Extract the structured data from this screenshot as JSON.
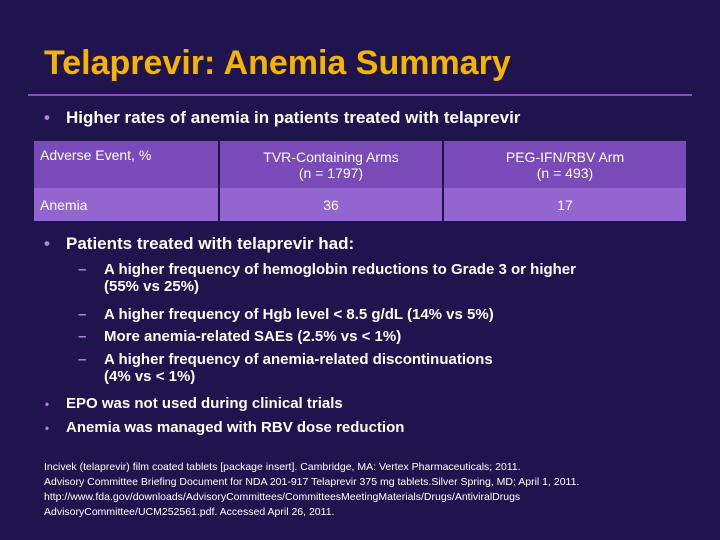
{
  "title": "Telaprevir: Anemia Summary",
  "bullet1": "Higher rates of anemia in patients treated with telaprevir",
  "table": {
    "headers": [
      "Adverse Event, %",
      "TVR-Containing Arms\n(n = 1797)",
      "PEG-IFN/RBV Arm\n(n = 493)"
    ],
    "header_lines": {
      "col2": [
        "TVR-Containing Arms",
        "(n = 1797)"
      ],
      "col3": [
        "PEG-IFN/RBV Arm",
        "(n = 493)"
      ]
    },
    "rows": [
      {
        "event": "Anemia",
        "tvr": "36",
        "peg": "17"
      }
    ]
  },
  "bullet2": "Patients treated with telaprevir had:",
  "subbullets": [
    {
      "lines": [
        "A higher frequency of hemoglobin reductions to Grade 3 or higher",
        "(55% vs 25%)"
      ]
    },
    {
      "lines": [
        "A higher frequency of Hgb level < 8.5 g/dL (14% vs 5%)"
      ]
    },
    {
      "lines": [
        "More anemia-related SAEs (2.5% vs < 1%)"
      ]
    },
    {
      "lines": [
        "A higher frequency of anemia-related discontinuations",
        "(4% vs < 1%)"
      ]
    }
  ],
  "bullet3": "EPO was not used during clinical trials",
  "bullet4": "Anemia was managed with RBV dose reduction",
  "references": [
    "Incivek (telaprevir) film coated tablets [package insert]. Cambridge, MA: Vertex Pharmaceuticals; 2011.",
    "Advisory Committee Briefing Document for NDA 201-917 Telaprevir 375 mg tablets.Silver Spring, MD; April 1, 2011.",
    "http://www.fda.gov/downloads/AdvisoryCommittees/CommitteesMeetingMaterials/Drugs/AntiviralDrugs",
    "AdvisoryCommittee/UCM252561.pdf. Accessed April 26, 2011."
  ],
  "colors": {
    "background": "#20144f",
    "title": "#f5b400",
    "bullet": "#b27fe6",
    "table_header": "#7a4bb8",
    "table_row": "#9366cf"
  }
}
